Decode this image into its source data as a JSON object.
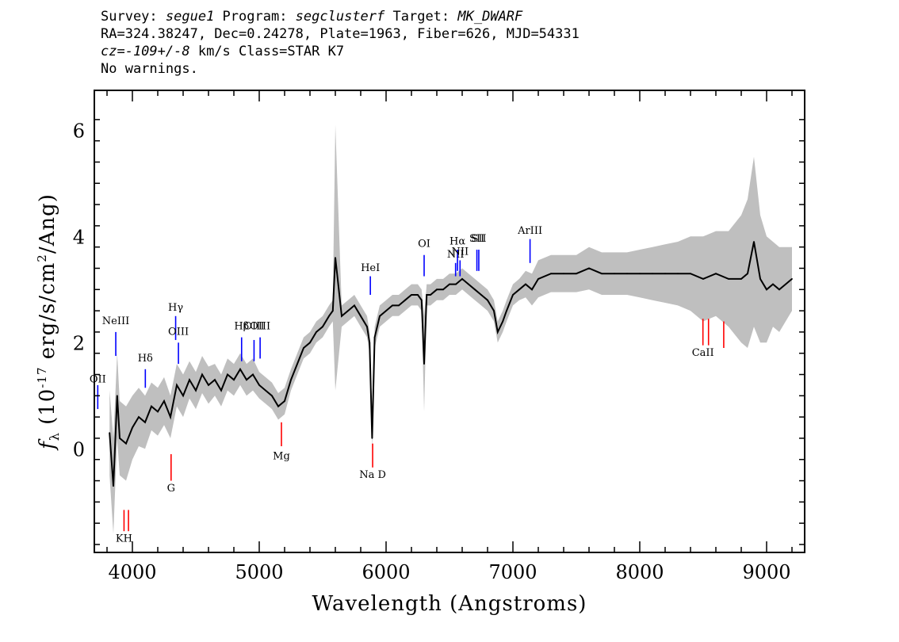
{
  "header": {
    "line1": {
      "survey_label": "Survey: ",
      "survey": "segue1",
      "program_label": " Program: ",
      "program": "segclusterf",
      "target_label": " Target: ",
      "target": "MK_DWARF"
    },
    "line2": "RA=324.38247, Dec=0.24278, Plate=1963, Fiber=626, MJD=54331",
    "line3": {
      "cz": "cz=-109+/-8",
      "rest": " km/s Class=STAR K7"
    },
    "line4": "No warnings."
  },
  "chart_data": {
    "type": "line",
    "xlabel": "Wavelength (Angstroms)",
    "ylabel": "f_λ (10^-17 erg/s/cm^2/Ang)",
    "xlim": [
      3700,
      9300
    ],
    "ylim": [
      -1.95,
      6.75
    ],
    "xticks": [
      4000,
      5000,
      6000,
      7000,
      8000,
      9000
    ],
    "yticks": [
      0,
      2,
      4,
      6
    ],
    "series": [
      {
        "color_flux": "#000000",
        "color_error": "#bfbfbf",
        "x": [
          3820,
          3850,
          3880,
          3900,
          3950,
          4000,
          4050,
          4100,
          4150,
          4200,
          4250,
          4300,
          4350,
          4400,
          4450,
          4500,
          4550,
          4600,
          4650,
          4700,
          4750,
          4800,
          4850,
          4900,
          4950,
          5000,
          5050,
          5100,
          5150,
          5200,
          5250,
          5300,
          5350,
          5400,
          5450,
          5500,
          5550,
          5580,
          5600,
          5650,
          5700,
          5750,
          5800,
          5850,
          5870,
          5890,
          5910,
          5950,
          6000,
          6050,
          6100,
          6150,
          6200,
          6250,
          6280,
          6300,
          6320,
          6350,
          6400,
          6450,
          6500,
          6550,
          6600,
          6650,
          6700,
          6750,
          6800,
          6850,
          6880,
          6920,
          6950,
          7000,
          7050,
          7100,
          7150,
          7200,
          7300,
          7400,
          7500,
          7600,
          7700,
          7800,
          7900,
          8000,
          8100,
          8200,
          8300,
          8400,
          8500,
          8600,
          8700,
          8800,
          8850,
          8900,
          8950,
          9000,
          9050,
          9100,
          9150,
          9200
        ],
        "y": [
          0.3,
          -0.7,
          1.0,
          0.2,
          0.1,
          0.4,
          0.6,
          0.5,
          0.8,
          0.7,
          0.9,
          0.6,
          1.2,
          1.0,
          1.3,
          1.1,
          1.4,
          1.2,
          1.3,
          1.1,
          1.4,
          1.3,
          1.5,
          1.3,
          1.4,
          1.2,
          1.1,
          1.0,
          0.8,
          0.9,
          1.3,
          1.6,
          1.9,
          2.0,
          2.2,
          2.3,
          2.5,
          2.6,
          3.6,
          2.5,
          2.6,
          2.7,
          2.5,
          2.3,
          2.0,
          0.2,
          2.1,
          2.5,
          2.6,
          2.7,
          2.7,
          2.8,
          2.9,
          2.9,
          2.8,
          1.6,
          2.9,
          2.9,
          3.0,
          3.0,
          3.1,
          3.1,
          3.2,
          3.1,
          3.0,
          2.9,
          2.8,
          2.6,
          2.2,
          2.4,
          2.6,
          2.9,
          3.0,
          3.1,
          3.0,
          3.2,
          3.3,
          3.3,
          3.3,
          3.4,
          3.3,
          3.3,
          3.3,
          3.3,
          3.3,
          3.3,
          3.3,
          3.3,
          3.2,
          3.3,
          3.2,
          3.2,
          3.3,
          3.9,
          3.2,
          3.0,
          3.1,
          3.0,
          3.1,
          3.2
        ],
        "spread": [
          0.8,
          0.9,
          0.8,
          0.7,
          0.7,
          0.6,
          0.55,
          0.5,
          0.45,
          0.45,
          0.45,
          0.4,
          0.4,
          0.4,
          0.35,
          0.35,
          0.35,
          0.35,
          0.3,
          0.3,
          0.3,
          0.3,
          0.3,
          0.3,
          0.3,
          0.25,
          0.25,
          0.25,
          0.25,
          0.25,
          0.2,
          0.2,
          0.2,
          0.2,
          0.2,
          0.2,
          0.2,
          0.2,
          2.5,
          0.2,
          0.2,
          0.2,
          0.2,
          0.2,
          0.2,
          0.2,
          0.2,
          0.2,
          0.2,
          0.2,
          0.2,
          0.2,
          0.2,
          0.2,
          0.2,
          0.9,
          0.2,
          0.2,
          0.2,
          0.2,
          0.2,
          0.2,
          0.2,
          0.2,
          0.2,
          0.2,
          0.2,
          0.2,
          0.2,
          0.2,
          0.2,
          0.2,
          0.2,
          0.25,
          0.3,
          0.35,
          0.35,
          0.35,
          0.35,
          0.4,
          0.4,
          0.4,
          0.4,
          0.45,
          0.5,
          0.55,
          0.6,
          0.7,
          0.8,
          0.8,
          0.9,
          1.2,
          1.4,
          1.6,
          1.2,
          1.0,
          0.8,
          0.8,
          0.7,
          0.6
        ]
      }
    ],
    "emission_lines": [
      {
        "label": "OII",
        "x": 3727,
        "y0": 0.75,
        "y1": 1.2,
        "label_y": 1.25,
        "color": "#0000ff"
      },
      {
        "label": "NeIII",
        "x": 3869,
        "y0": 1.75,
        "y1": 2.2,
        "label_y": 2.35,
        "color": "#0000ff"
      },
      {
        "label": "Hδ",
        "x": 4102,
        "y0": 1.15,
        "y1": 1.5,
        "label_y": 1.65,
        "color": "#0000ff"
      },
      {
        "label": "Hγ",
        "x": 4341,
        "y0": 2.05,
        "y1": 2.5,
        "label_y": 2.6,
        "color": "#0000ff"
      },
      {
        "label": "OIII",
        "x": 4363,
        "y0": 1.6,
        "y1": 2.0,
        "label_y": 2.15,
        "color": "#0000ff"
      },
      {
        "label": "Hβ",
        "x": 4861,
        "y0": 1.65,
        "y1": 2.1,
        "label_y": 2.25,
        "color": "#0000ff"
      },
      {
        "label": "OIII",
        "x": 4959,
        "y0": 1.65,
        "y1": 2.05,
        "label_y": 2.25,
        "color": "#0000ff"
      },
      {
        "label": "OIII",
        "x": 5007,
        "y0": 1.7,
        "y1": 2.1,
        "label_y": 2.25,
        "color": "#0000ff"
      },
      {
        "label": "HeI",
        "x": 5876,
        "y0": 2.9,
        "y1": 3.25,
        "label_y": 3.35,
        "color": "#0000ff"
      },
      {
        "label": "OI",
        "x": 6300,
        "y0": 3.25,
        "y1": 3.65,
        "label_y": 3.8,
        "color": "#0000ff"
      },
      {
        "label": "NII",
        "x": 6548,
        "y0": 3.25,
        "y1": 3.5,
        "label_y": 3.6,
        "color": "#0000ff"
      },
      {
        "label": "Hα",
        "x": 6563,
        "y0": 3.35,
        "y1": 3.75,
        "label_y": 3.85,
        "color": "#0000ff"
      },
      {
        "label": "NII",
        "x": 6583,
        "y0": 3.25,
        "y1": 3.55,
        "label_y": 3.65,
        "color": "#0000ff"
      },
      {
        "label": "SII",
        "x": 6716,
        "y0": 3.35,
        "y1": 3.75,
        "label_y": 3.9,
        "color": "#0000ff"
      },
      {
        "label": "SII",
        "x": 6731,
        "y0": 3.35,
        "y1": 3.75,
        "label_y": 3.9,
        "color": "#0000ff"
      },
      {
        "label": "ArIII",
        "x": 7135,
        "y0": 3.5,
        "y1": 3.95,
        "label_y": 4.05,
        "color": "#0000ff"
      }
    ],
    "absorption_lines": [
      {
        "label": "KH",
        "x": 3934,
        "y0": -1.55,
        "y1": -1.15,
        "label_y": -1.75,
        "color": "#ff0000"
      },
      {
        "label": "",
        "x": 3969,
        "y0": -1.55,
        "y1": -1.15,
        "label_y": -1.75,
        "color": "#ff0000"
      },
      {
        "label": "G",
        "x": 4305,
        "y0": -0.6,
        "y1": -0.1,
        "label_y": -0.8,
        "color": "#ff0000"
      },
      {
        "label": "Mg",
        "x": 5175,
        "y0": 0.05,
        "y1": 0.5,
        "label_y": -0.2,
        "color": "#ff0000"
      },
      {
        "label": "Na D",
        "x": 5894,
        "y0": -0.35,
        "y1": 0.1,
        "label_y": -0.55,
        "color": "#ff0000"
      },
      {
        "label": "CaII",
        "x": 8498,
        "y0": 1.95,
        "y1": 2.45,
        "label_y": 1.75,
        "color": "#ff0000"
      },
      {
        "label": "",
        "x": 8542,
        "y0": 1.95,
        "y1": 2.45,
        "label_y": 1.75,
        "color": "#ff0000"
      },
      {
        "label": "",
        "x": 8662,
        "y0": 1.9,
        "y1": 2.4,
        "label_y": 1.75,
        "color": "#ff0000"
      }
    ]
  }
}
